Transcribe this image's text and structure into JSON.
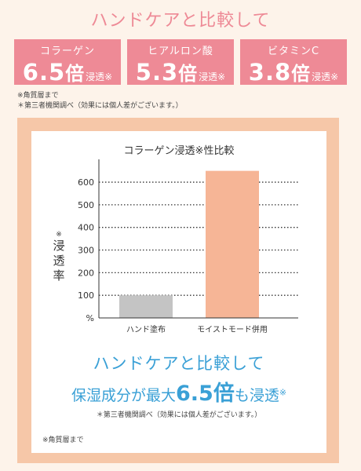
{
  "header": {
    "title": "ハンドケアと比較して"
  },
  "stats": [
    {
      "label": "コラーゲン",
      "value": "6.5",
      "unit": "倍",
      "suffix": "浸透※"
    },
    {
      "label": "ヒアルロン酸",
      "value": "5.3",
      "unit": "倍",
      "suffix": "浸透※"
    },
    {
      "label": "ビタミンC",
      "value": "3.8",
      "unit": "倍",
      "suffix": "浸透※"
    }
  ],
  "notes": {
    "stratum": "※角質層まで",
    "third_party": "＊第三者機関調べ（効果には個人差がございます。）"
  },
  "chart_data": {
    "type": "bar",
    "title": "コラーゲン浸透※性比較",
    "ylabel_mark": "※",
    "ylabel": "浸透率",
    "yunit": "%",
    "categories": [
      "ハンド塗布",
      "モイストモード併用"
    ],
    "values": [
      100,
      650
    ],
    "bar_colors": [
      "#c4c4c4",
      "#f6b596"
    ],
    "yticks": [
      100,
      200,
      300,
      400,
      500,
      600
    ],
    "ylim": [
      0,
      680
    ],
    "grid": true
  },
  "highlight": {
    "line1": "ハンドケアと比較して",
    "line2_prefix": "保湿成分が最大",
    "line2_value": "6.5",
    "line2_unit": "倍",
    "line2_suffix": "も浸透",
    "line2_mark": "※"
  },
  "panel_notes": {
    "source": "＊第三者機関調べ（効果には個人差がございます。）",
    "stratum": "※角質層まで"
  }
}
